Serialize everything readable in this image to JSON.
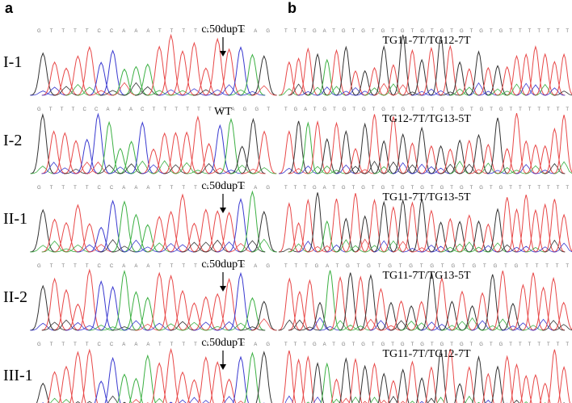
{
  "panels": [
    {
      "label": "a",
      "rows": [
        {
          "sample": "I-1",
          "sequence": "GTTTTCCAAATTTTTTTCAG",
          "annotation": "c.50dupT",
          "arrow": true
        },
        {
          "sample": "I-2",
          "sequence": "GTTTCCAAACTTTTTTCAGGT",
          "annotation": "WT",
          "arrow": false
        },
        {
          "sample": "II-1",
          "sequence": "GTTTTCCAAATTTTTTTCAG",
          "annotation": "c.50dupT",
          "arrow": true
        },
        {
          "sample": "II-2",
          "sequence": "GTTTTCCAAATTTTTTTCAG",
          "annotation": "c.50dupT",
          "arrow": true
        },
        {
          "sample": "III-1",
          "sequence": "GTTTTCCAAATTTTTTTCAG",
          "annotation": "c.50dupT",
          "arrow": true
        }
      ]
    },
    {
      "label": "b",
      "rows": [
        {
          "sequence": "TTTGATGTGTGTGTGTGTGTGTGTTTTTTT",
          "annotation": "TG11-7T/TG12-7T"
        },
        {
          "sequence": "TGATGTGTGTGTGTGTGTGTGTGTTTTTTT",
          "annotation": "TG12-7T/TG13-5T"
        },
        {
          "sequence": "TTTGATGTGTGTGTGTGTGTGTGTTTTTTT",
          "annotation": "TG11-7T/TG13-5T"
        },
        {
          "sequence": "TTTGATGTGTGTGTGTGTGTGTGTTTTT",
          "annotation": "TG11-7T/TG13-5T"
        },
        {
          "sequence": "TTTGATGTGTGTGTGTGTGTGTGTTTTTTT",
          "annotation": "TG11-7T/TG12-7T"
        }
      ]
    }
  ]
}
